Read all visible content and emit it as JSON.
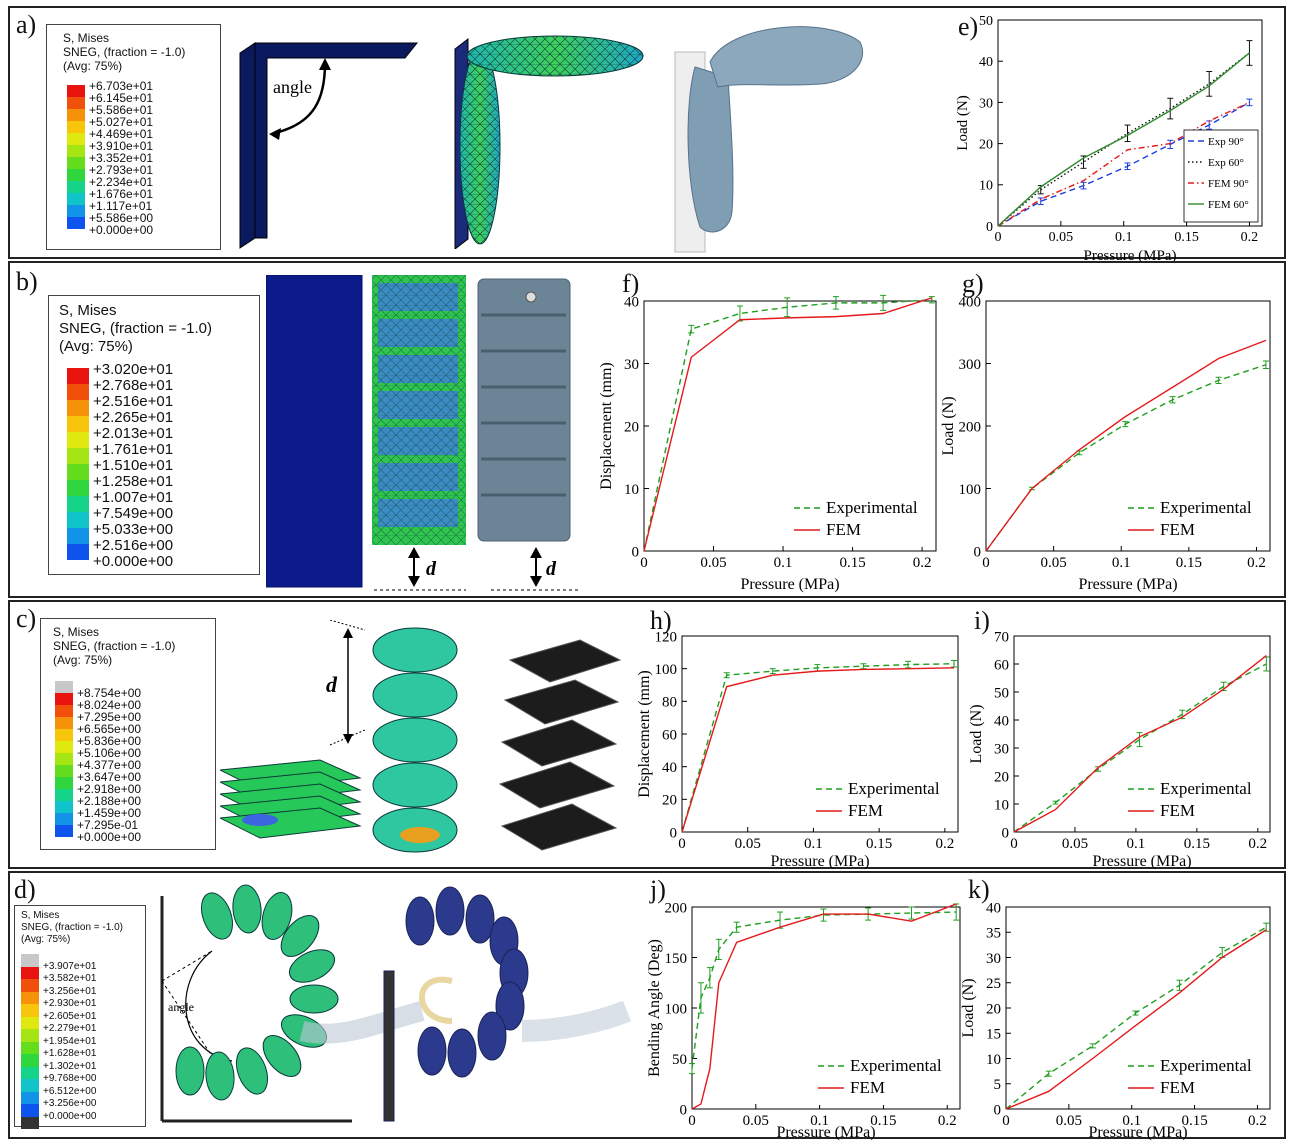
{
  "panels": {
    "a": {
      "label": "a)",
      "annotation": "angle",
      "legend": {
        "h1": "S, Mises",
        "h2": "SNEG, (fraction = -1.0)",
        "h3": "(Avg: 75%)",
        "values": [
          "+6.703e+01",
          "+6.145e+01",
          "+5.586e+01",
          "+5.027e+01",
          "+4.469e+01",
          "+3.910e+01",
          "+3.352e+01",
          "+2.793e+01",
          "+2.234e+01",
          "+1.676e+01",
          "+1.117e+01",
          "+5.586e+00",
          "+0.000e+00"
        ]
      }
    },
    "b": {
      "label": "b)",
      "d_label": "d",
      "legend": {
        "h1": "S, Mises",
        "h2": "SNEG, (fraction = -1.0)",
        "h3": "(Avg: 75%)",
        "values": [
          "+3.020e+01",
          "+2.768e+01",
          "+2.516e+01",
          "+2.265e+01",
          "+2.013e+01",
          "+1.761e+01",
          "+1.510e+01",
          "+1.258e+01",
          "+1.007e+01",
          "+7.549e+00",
          "+5.033e+00",
          "+2.516e+00",
          "+0.000e+00"
        ]
      }
    },
    "c": {
      "label": "c)",
      "d_label": "d",
      "legend": {
        "h1": "S, Mises",
        "h2": "SNEG, (fraction = -1.0)",
        "h3": "(Avg: 75%)",
        "values": [
          "+8.754e+00",
          "+8.024e+00",
          "+7.295e+00",
          "+6.565e+00",
          "+5.836e+00",
          "+5.106e+00",
          "+4.377e+00",
          "+3.647e+00",
          "+2.918e+00",
          "+2.188e+00",
          "+1.459e+00",
          "+7.295e-01",
          "+0.000e+00"
        ]
      }
    },
    "d": {
      "label": "d)",
      "annotation": "angle",
      "legend": {
        "h1": "S, Mises",
        "h2": "SNEG, (fraction = -1.0)",
        "h3": "(Avg: 75%)",
        "values": [
          "+3.907e+01",
          "+3.582e+01",
          "+3.256e+01",
          "+2.930e+01",
          "+2.605e+01",
          "+2.279e+01",
          "+1.954e+01",
          "+1.628e+01",
          "+1.302e+01",
          "+9.768e+00",
          "+6.512e+00",
          "+3.256e+00",
          "+0.000e+00"
        ]
      }
    }
  },
  "colors": {
    "contour": [
      "#e8130f",
      "#f0500a",
      "#f5920a",
      "#f7c60c",
      "#dfe80f",
      "#a6e514",
      "#64dd1c",
      "#2fd63d",
      "#16d38a",
      "#10c4c9",
      "#1193e8",
      "#0f53ef",
      "#1313f2"
    ],
    "exp_green": "#1f9e1f",
    "fem_red": "#e41a1c",
    "exp_blue": "#1f3de0",
    "exp_black": "#111111",
    "fem_green": "#2e8b2e"
  },
  "chart_data": [
    {
      "id": "e",
      "type": "line",
      "panel_label": "e)",
      "xlabel": "Pressure (MPa)",
      "ylabel": "Load (N)",
      "xlim": [
        0,
        0.21
      ],
      "ylim": [
        0,
        50
      ],
      "xticks": [
        0,
        0.05,
        0.1,
        0.15,
        0.2
      ],
      "yticks": [
        0,
        10,
        20,
        30,
        40,
        50
      ],
      "legend_position": "bottom-right",
      "series": [
        {
          "name": "Exp 90°",
          "style": "dashed",
          "color": "#1f3de0",
          "x": [
            0,
            0.034,
            0.068,
            0.103,
            0.137,
            0.168,
            0.2
          ],
          "y": [
            0,
            6,
            9.8,
            14.5,
            19.8,
            24.5,
            30
          ],
          "err": [
            0,
            0.8,
            0.8,
            0.8,
            1,
            1,
            0.8
          ]
        },
        {
          "name": "Exp 60°",
          "style": "dotted",
          "color": "#111111",
          "x": [
            0,
            0.034,
            0.068,
            0.103,
            0.137,
            0.168,
            0.2
          ],
          "y": [
            0,
            8.8,
            15.5,
            22.5,
            28.5,
            34.5,
            42
          ],
          "err": [
            0,
            1,
            1.5,
            2,
            2.5,
            3,
            3
          ]
        },
        {
          "name": "FEM 90°",
          "style": "dashdot",
          "color": "#e41a1c",
          "x": [
            0,
            0.034,
            0.068,
            0.103,
            0.137,
            0.168,
            0.2
          ],
          "y": [
            0,
            6.5,
            11,
            18.5,
            20,
            25.5,
            30
          ]
        },
        {
          "name": "FEM 60°",
          "style": "solid",
          "color": "#2e8b2e",
          "x": [
            0,
            0.034,
            0.068,
            0.103,
            0.137,
            0.168,
            0.2
          ],
          "y": [
            0,
            9.5,
            16.5,
            22,
            28,
            34,
            42
          ]
        }
      ]
    },
    {
      "id": "f",
      "type": "line",
      "panel_label": "f)",
      "xlabel": "Pressure (MPa)",
      "ylabel": "Displacement (mm)",
      "xlim": [
        0,
        0.21
      ],
      "ylim": [
        0,
        40
      ],
      "xticks": [
        0,
        0.05,
        0.1,
        0.15,
        0.2
      ],
      "yticks": [
        0,
        10,
        20,
        30,
        40
      ],
      "legend_position": "bottom-right",
      "series": [
        {
          "name": "Experimental",
          "style": "dashed",
          "color": "#1f9e1f",
          "x": [
            0,
            0.034,
            0.069,
            0.103,
            0.138,
            0.172,
            0.207
          ],
          "y": [
            0,
            35.5,
            38,
            39,
            39.7,
            39.7,
            40.2
          ],
          "err": [
            0,
            0.6,
            1.2,
            1.5,
            1,
            1.2,
            0.5
          ]
        },
        {
          "name": "FEM",
          "style": "solid",
          "color": "#e41a1c",
          "x": [
            0,
            0.034,
            0.069,
            0.103,
            0.138,
            0.172,
            0.207
          ],
          "y": [
            0,
            31,
            37,
            37.3,
            37.5,
            38,
            40.5
          ]
        }
      ]
    },
    {
      "id": "g",
      "type": "line",
      "panel_label": "g)",
      "xlabel": "Pressure (MPa)",
      "ylabel": "Load (N)",
      "xlim": [
        0,
        0.21
      ],
      "ylim": [
        0,
        400
      ],
      "xticks": [
        0,
        0.05,
        0.1,
        0.15,
        0.2
      ],
      "yticks": [
        0,
        100,
        200,
        300,
        400
      ],
      "legend_position": "bottom-right",
      "series": [
        {
          "name": "Experimental",
          "style": "dashed",
          "color": "#1f9e1f",
          "x": [
            0,
            0.034,
            0.069,
            0.103,
            0.138,
            0.172,
            0.207
          ],
          "y": [
            0,
            100,
            157,
            203,
            242,
            273,
            298
          ],
          "err": [
            0,
            2,
            3,
            4,
            5,
            5,
            6
          ]
        },
        {
          "name": "FEM",
          "style": "solid",
          "color": "#e41a1c",
          "x": [
            0,
            0.034,
            0.069,
            0.103,
            0.138,
            0.172,
            0.207
          ],
          "y": [
            0,
            100,
            162,
            215,
            262,
            308,
            337
          ]
        }
      ]
    },
    {
      "id": "h",
      "type": "line",
      "panel_label": "h)",
      "xlabel": "Pressure (MPa)",
      "ylabel": "Displacement (mm)",
      "xlim": [
        0,
        0.21
      ],
      "ylim": [
        0,
        120
      ],
      "xticks": [
        0,
        0.05,
        0.1,
        0.15,
        0.2
      ],
      "yticks": [
        0,
        20,
        40,
        60,
        80,
        100,
        120
      ],
      "legend_position": "bottom-right",
      "series": [
        {
          "name": "Experimental",
          "style": "dashed",
          "color": "#1f9e1f",
          "x": [
            0,
            0.034,
            0.069,
            0.103,
            0.138,
            0.172,
            0.207
          ],
          "y": [
            0,
            96,
            98.5,
            100.5,
            101.5,
            102.5,
            103
          ],
          "err": [
            0,
            1.5,
            1.5,
            2,
            1.5,
            2,
            2
          ]
        },
        {
          "name": "FEM",
          "style": "solid",
          "color": "#e41a1c",
          "x": [
            0,
            0.034,
            0.069,
            0.103,
            0.138,
            0.172,
            0.207
          ],
          "y": [
            0,
            89,
            96,
            98.5,
            99.5,
            100,
            100.5
          ]
        }
      ]
    },
    {
      "id": "i",
      "type": "line",
      "panel_label": "i)",
      "xlabel": "Pressure (MPa)",
      "ylabel": "Load (N)",
      "xlim": [
        0,
        0.21
      ],
      "ylim": [
        0,
        70
      ],
      "xticks": [
        0,
        0.05,
        0.1,
        0.15,
        0.2
      ],
      "yticks": [
        0,
        10,
        20,
        30,
        40,
        50,
        60,
        70
      ],
      "legend_position": "bottom-right",
      "series": [
        {
          "name": "Experimental",
          "style": "dashed",
          "color": "#1f9e1f",
          "x": [
            0,
            0.034,
            0.069,
            0.103,
            0.138,
            0.172,
            0.207
          ],
          "y": [
            0,
            10.5,
            22.5,
            33,
            42,
            52,
            60
          ],
          "err": [
            0,
            0.5,
            0.8,
            2.5,
            1.5,
            1.5,
            2.5
          ]
        },
        {
          "name": "FEM",
          "style": "solid",
          "color": "#e41a1c",
          "x": [
            0,
            0.034,
            0.069,
            0.103,
            0.138,
            0.172,
            0.207
          ],
          "y": [
            0,
            8,
            23,
            34,
            41,
            51,
            63
          ]
        }
      ]
    },
    {
      "id": "j",
      "type": "line",
      "panel_label": "j)",
      "xlabel": "Pressure (MPa)",
      "ylabel": "Bending Angle (Deg)",
      "xlim": [
        0,
        0.21
      ],
      "ylim": [
        0,
        200
      ],
      "xticks": [
        0,
        0.05,
        0.1,
        0.15,
        0.2
      ],
      "yticks": [
        0,
        50,
        100,
        150,
        200
      ],
      "legend_position": "bottom-right",
      "series": [
        {
          "name": "Experimental",
          "style": "dashed",
          "color": "#1f9e1f",
          "x": [
            0,
            0.007,
            0.014,
            0.021,
            0.035,
            0.069,
            0.103,
            0.138,
            0.172,
            0.207
          ],
          "y": [
            40,
            110,
            130,
            158,
            180,
            187,
            192,
            193,
            194,
            195
          ],
          "err": [
            5,
            15,
            10,
            10,
            5,
            8,
            6,
            6,
            6,
            8
          ]
        },
        {
          "name": "FEM",
          "style": "solid",
          "color": "#e41a1c",
          "x": [
            0,
            0.007,
            0.014,
            0.021,
            0.035,
            0.069,
            0.103,
            0.138,
            0.172,
            0.207
          ],
          "y": [
            0,
            5,
            40,
            125,
            165,
            180,
            193,
            193,
            186,
            203
          ]
        }
      ]
    },
    {
      "id": "k",
      "type": "line",
      "panel_label": "k)",
      "xlabel": "Pressure (MPa)",
      "ylabel": "Load (N)",
      "xlim": [
        0,
        0.21
      ],
      "ylim": [
        0,
        40
      ],
      "xticks": [
        0,
        0.05,
        0.1,
        0.15,
        0.2
      ],
      "yticks": [
        0,
        5,
        10,
        15,
        20,
        25,
        30,
        35,
        40
      ],
      "legend_position": "bottom-right",
      "series": [
        {
          "name": "Experimental",
          "style": "dashed",
          "color": "#1f9e1f",
          "x": [
            0,
            0.034,
            0.069,
            0.103,
            0.138,
            0.172,
            0.207
          ],
          "y": [
            0,
            7,
            12.5,
            19,
            24.5,
            31,
            36
          ],
          "err": [
            0,
            0.5,
            0.4,
            0.4,
            1,
            1,
            0.8
          ]
        },
        {
          "name": "FEM",
          "style": "solid",
          "color": "#e41a1c",
          "x": [
            0,
            0.034,
            0.069,
            0.103,
            0.138,
            0.172,
            0.207
          ],
          "y": [
            0,
            3.5,
            10,
            16.5,
            23,
            30,
            35.5
          ]
        }
      ]
    }
  ]
}
